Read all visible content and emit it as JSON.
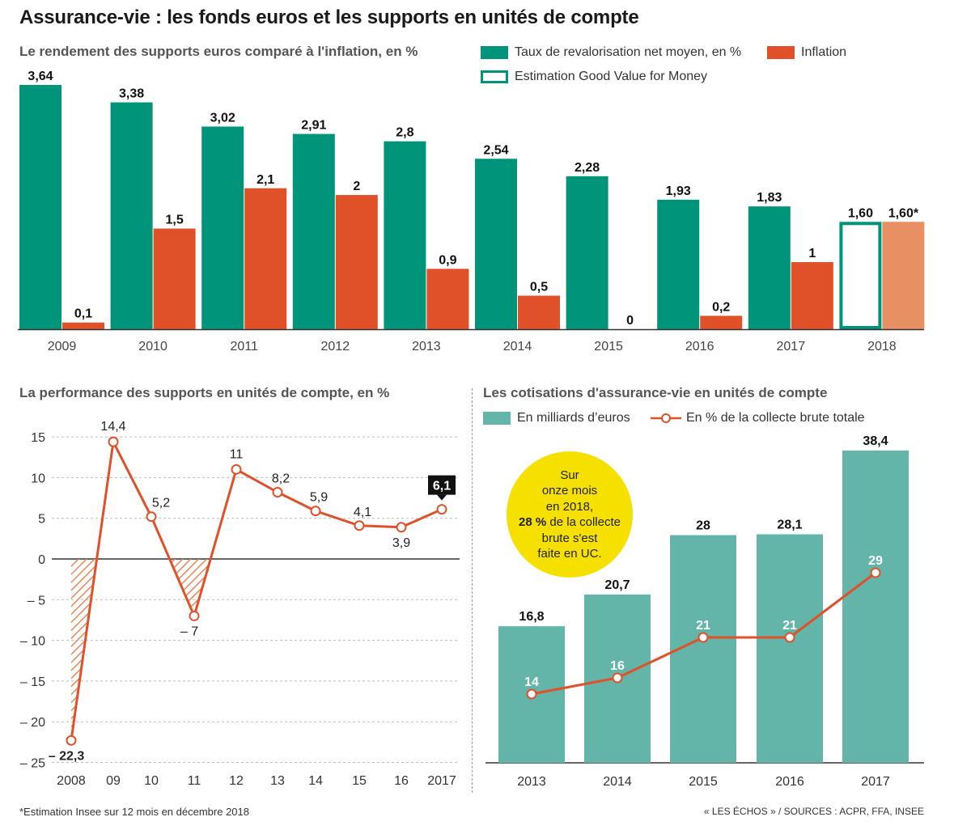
{
  "title": "Assurance-vie : les fonds euros et les supports en unités de compte",
  "footnote": "*Estimation Insee sur 12 mois en décembre 2018",
  "source": "« LES ÉCHOS » / SOURCES : ACPR, FFA, INSEE",
  "colors": {
    "green": "#00957a",
    "orange": "#e0512a",
    "light_orange": "#e89063",
    "teal": "#62b5a8",
    "callout": "#f5e000"
  },
  "callout": {
    "line1": "Sur",
    "line2": "onze mois",
    "line3": "en 2018,",
    "bold": "28 %",
    "line4": " de la collecte",
    "line5": "brute s'est",
    "line6": "faite en UC."
  },
  "chart_data": [
    {
      "type": "bar",
      "title": "Le rendement des supports euros comparé à l'inflation, en %",
      "categories": [
        "2009",
        "2010",
        "2011",
        "2012",
        "2013",
        "2014",
        "2015",
        "2016",
        "2017",
        "2018"
      ],
      "series": [
        {
          "name": "Taux de revalorisation net moyen, en %",
          "values": [
            3.64,
            3.38,
            3.02,
            2.91,
            2.8,
            2.54,
            2.28,
            1.93,
            1.83,
            1.6
          ],
          "labels": [
            "3,64",
            "3,38",
            "3,02",
            "2,91",
            "2,8",
            "2,54",
            "2,28",
            "1,93",
            "1,83",
            "1,60"
          ]
        },
        {
          "name": "Inflation",
          "values": [
            0.1,
            1.5,
            2.1,
            2,
            0.9,
            0.5,
            0,
            0.2,
            1,
            1.6
          ],
          "labels": [
            "0,1",
            "1,5",
            "2,1",
            "2",
            "0,9",
            "0,5",
            "0",
            "0,2",
            "1",
            "1,60*"
          ]
        }
      ],
      "estimate_legend": "Estimation Good Value for Money",
      "ylim": [
        0,
        3.7
      ]
    },
    {
      "type": "line",
      "title": "La performance des supports en unités de compte, en %",
      "categories": [
        "2008",
        "09",
        "10",
        "11",
        "12",
        "13",
        "14",
        "15",
        "16",
        "2017"
      ],
      "values": [
        -22.3,
        14.4,
        5.2,
        -7,
        11,
        8.2,
        5.9,
        4.1,
        3.9,
        6.1
      ],
      "labels": [
        "– 22,3",
        "14,4",
        "5,2",
        "– 7",
        "11",
        "8,2",
        "5,9",
        "4,1",
        "3,9",
        "6,1"
      ],
      "yticks": [
        15,
        10,
        5,
        0,
        -5,
        -10,
        -15,
        -20,
        -25
      ],
      "ytick_labels": [
        "15",
        "10",
        "5",
        "0",
        "– 5",
        "– 10",
        "– 15",
        "– 20",
        "– 25"
      ],
      "ylim": [
        -25,
        15
      ]
    },
    {
      "type": "bar",
      "title": "Les cotisations d'assurance-vie en unités de compte",
      "categories": [
        "2013",
        "2014",
        "2015",
        "2016",
        "2017"
      ],
      "series": [
        {
          "name": "En milliards d’euros",
          "values": [
            16.8,
            20.7,
            28,
            28.1,
            38.4
          ],
          "labels": [
            "16,8",
            "20,7",
            "28",
            "28,1",
            "38,4"
          ]
        },
        {
          "name": "En % de la collecte brute totale",
          "values": [
            14,
            16,
            21,
            21,
            29
          ],
          "labels": [
            "14",
            "16",
            "21",
            "21",
            "29"
          ]
        }
      ],
      "ylim": [
        0,
        38.4
      ]
    }
  ]
}
